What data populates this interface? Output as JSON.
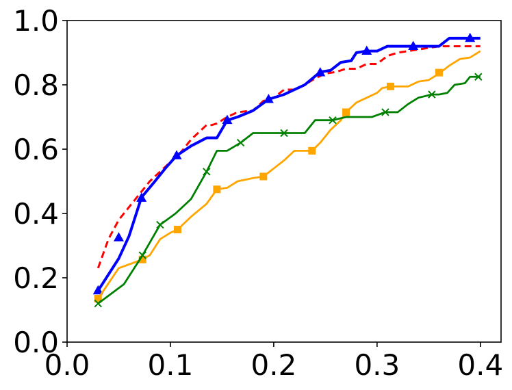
{
  "chart_data": {
    "type": "line",
    "title": "",
    "xlabel": "",
    "ylabel": "",
    "xlim": [
      0.0,
      0.42
    ],
    "ylim": [
      0.0,
      1.0
    ],
    "xticks": [
      "0.0",
      "0.1",
      "0.2",
      "0.3",
      "0.4"
    ],
    "yticks": [
      "0.0",
      "0.2",
      "0.4",
      "0.6",
      "0.8",
      "1.0"
    ],
    "grid": false,
    "legend": false,
    "series": [
      {
        "color": "#ff0000",
        "line_style": "dashed",
        "marker": "none",
        "x": [
          0.03,
          0.04,
          0.05,
          0.06,
          0.07,
          0.08,
          0.09,
          0.1,
          0.11,
          0.12,
          0.13,
          0.135,
          0.14,
          0.145,
          0.155,
          0.165,
          0.18,
          0.19,
          0.2,
          0.21,
          0.22,
          0.23,
          0.24,
          0.25,
          0.26,
          0.27,
          0.28,
          0.29,
          0.3,
          0.31,
          0.32,
          0.33,
          0.34,
          0.35,
          0.36,
          0.37,
          0.38,
          0.39,
          0.4
        ],
        "y": [
          0.23,
          0.32,
          0.38,
          0.42,
          0.46,
          0.5,
          0.53,
          0.56,
          0.59,
          0.63,
          0.66,
          0.675,
          0.675,
          0.68,
          0.7,
          0.715,
          0.72,
          0.75,
          0.76,
          0.785,
          0.785,
          0.8,
          0.82,
          0.835,
          0.84,
          0.85,
          0.85,
          0.865,
          0.865,
          0.89,
          0.9,
          0.905,
          0.91,
          0.915,
          0.92,
          0.92,
          0.92,
          0.92,
          0.92
        ]
      },
      {
        "color": "#0000ff",
        "line_style": "solid",
        "marker": "triangle",
        "x": [
          0.03,
          0.05,
          0.06,
          0.072,
          0.085,
          0.095,
          0.106,
          0.12,
          0.135,
          0.145,
          0.155,
          0.165,
          0.18,
          0.195,
          0.21,
          0.23,
          0.245,
          0.255,
          0.265,
          0.275,
          0.28,
          0.29,
          0.3,
          0.31,
          0.32,
          0.335,
          0.35,
          0.36,
          0.37,
          0.38,
          0.39,
          0.4
        ],
        "y": [
          0.16,
          0.26,
          0.33,
          0.45,
          0.5,
          0.54,
          0.58,
          0.61,
          0.635,
          0.635,
          0.69,
          0.7,
          0.72,
          0.755,
          0.77,
          0.8,
          0.84,
          0.845,
          0.87,
          0.875,
          0.9,
          0.905,
          0.905,
          0.92,
          0.92,
          0.92,
          0.92,
          0.92,
          0.945,
          0.945,
          0.945,
          0.945
        ],
        "marker_x": [
          0.03,
          0.05,
          0.072,
          0.106,
          0.155,
          0.195,
          0.245,
          0.29,
          0.335,
          0.39
        ],
        "marker_y": [
          0.16,
          0.325,
          0.448,
          0.58,
          0.69,
          0.755,
          0.838,
          0.905,
          0.92,
          0.945
        ]
      },
      {
        "color": "#ffa500",
        "line_style": "solid",
        "marker": "square",
        "x": [
          0.03,
          0.05,
          0.073,
          0.08,
          0.09,
          0.1,
          0.107,
          0.12,
          0.135,
          0.145,
          0.155,
          0.165,
          0.18,
          0.19,
          0.2,
          0.21,
          0.22,
          0.23,
          0.237,
          0.245,
          0.255,
          0.265,
          0.27,
          0.28,
          0.29,
          0.3,
          0.305,
          0.313,
          0.33,
          0.34,
          0.35,
          0.36,
          0.37,
          0.38,
          0.39,
          0.4
        ],
        "y": [
          0.135,
          0.23,
          0.257,
          0.27,
          0.32,
          0.34,
          0.35,
          0.39,
          0.43,
          0.475,
          0.48,
          0.5,
          0.51,
          0.515,
          0.54,
          0.565,
          0.595,
          0.595,
          0.595,
          0.62,
          0.66,
          0.69,
          0.715,
          0.745,
          0.76,
          0.775,
          0.79,
          0.795,
          0.795,
          0.81,
          0.815,
          0.835,
          0.86,
          0.88,
          0.885,
          0.905
        ],
        "marker_x": [
          0.03,
          0.073,
          0.107,
          0.145,
          0.19,
          0.237,
          0.27,
          0.313,
          0.36
        ],
        "marker_y": [
          0.135,
          0.257,
          0.35,
          0.475,
          0.515,
          0.595,
          0.715,
          0.795,
          0.838
        ]
      },
      {
        "color": "#008000",
        "line_style": "solid",
        "marker": "x",
        "x": [
          0.03,
          0.055,
          0.073,
          0.09,
          0.105,
          0.12,
          0.135,
          0.145,
          0.155,
          0.168,
          0.18,
          0.195,
          0.21,
          0.23,
          0.24,
          0.257,
          0.27,
          0.285,
          0.295,
          0.308,
          0.32,
          0.33,
          0.34,
          0.353,
          0.36,
          0.368,
          0.375,
          0.385,
          0.39,
          0.4
        ],
        "y": [
          0.12,
          0.18,
          0.27,
          0.365,
          0.4,
          0.445,
          0.53,
          0.595,
          0.595,
          0.62,
          0.65,
          0.65,
          0.65,
          0.65,
          0.69,
          0.69,
          0.7,
          0.7,
          0.7,
          0.715,
          0.715,
          0.74,
          0.76,
          0.77,
          0.77,
          0.775,
          0.8,
          0.805,
          0.825,
          0.825
        ],
        "marker_x": [
          0.03,
          0.073,
          0.09,
          0.135,
          0.168,
          0.21,
          0.257,
          0.308,
          0.353,
          0.398
        ],
        "marker_y": [
          0.12,
          0.27,
          0.365,
          0.53,
          0.62,
          0.65,
          0.69,
          0.715,
          0.77,
          0.825
        ]
      }
    ]
  }
}
